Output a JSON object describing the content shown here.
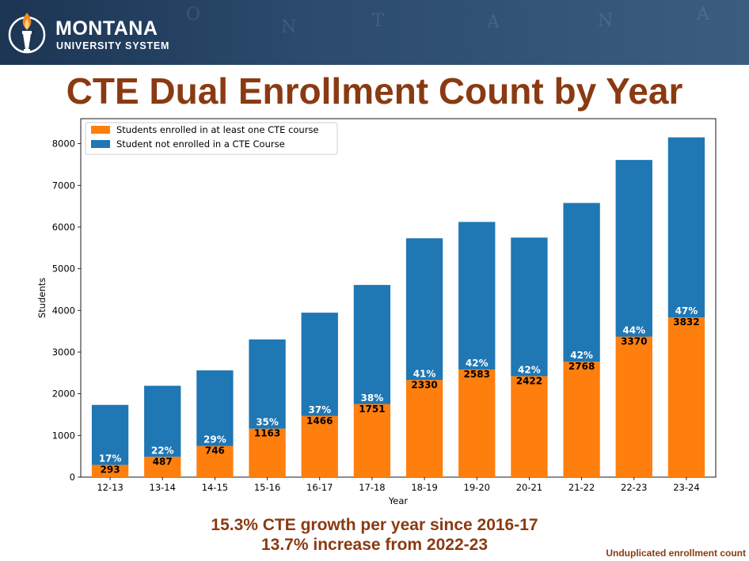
{
  "header": {
    "logo_title": "MONTANA",
    "logo_subtitle": "UNIVERSITY SYSTEM",
    "map_letters": [
      "O",
      "N",
      "T",
      "A",
      "N",
      "A"
    ]
  },
  "title": "CTE Dual Enrollment Count by Year",
  "chart_data": {
    "type": "bar",
    "stacked": true,
    "xlabel": "Year",
    "ylabel": "Students",
    "ylim": [
      0,
      8600
    ],
    "yticks": [
      0,
      1000,
      2000,
      3000,
      4000,
      5000,
      6000,
      7000,
      8000
    ],
    "legend_position": "top-left",
    "grid": false,
    "categories": [
      "12-13",
      "13-14",
      "14-15",
      "15-16",
      "16-17",
      "17-18",
      "18-19",
      "19-20",
      "20-21",
      "21-22",
      "22-23",
      "23-24"
    ],
    "series": [
      {
        "name": "Students enrolled in at least one CTE course",
        "color": "#ff7f0e",
        "values": [
          293,
          487,
          746,
          1163,
          1466,
          1751,
          2330,
          2583,
          2422,
          2768,
          3370,
          3832
        ]
      },
      {
        "name": "Student not enrolled in a CTE Course",
        "color": "#1f77b4",
        "values": [
          1440,
          1705,
          1815,
          2140,
          2480,
          2860,
          3400,
          3540,
          3325,
          3810,
          4240,
          4320
        ]
      }
    ],
    "percent_labels": [
      "17%",
      "22%",
      "29%",
      "35%",
      "37%",
      "38%",
      "41%",
      "42%",
      "42%",
      "42%",
      "44%",
      "47%"
    ]
  },
  "footnotes": {
    "line1": "15.3% CTE growth per year since 2016-17",
    "line2": "13.7% increase from 2022-23",
    "corner": "Unduplicated enrollment count"
  }
}
